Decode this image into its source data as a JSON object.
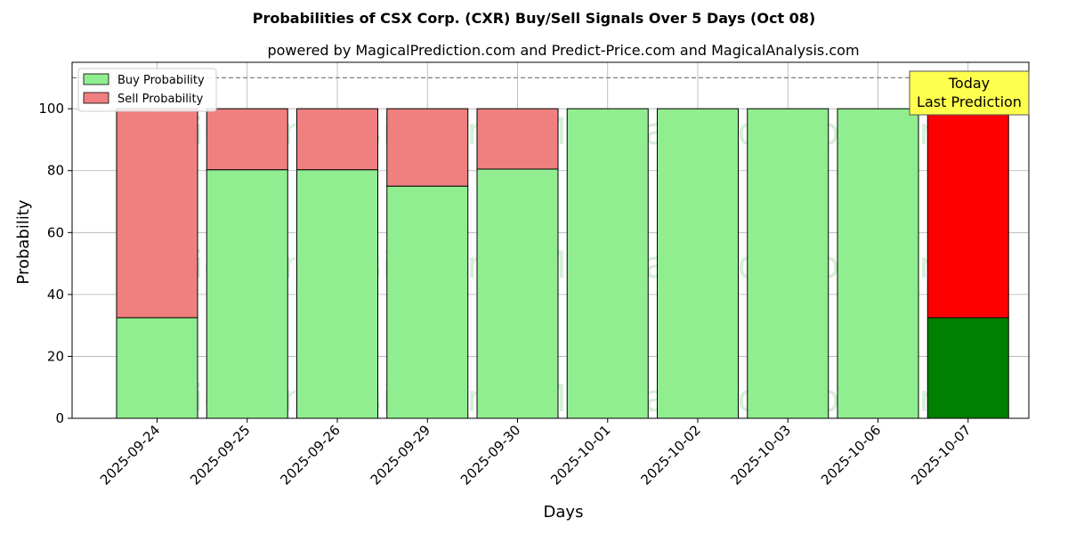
{
  "chart_data": {
    "type": "bar",
    "stacked": true,
    "title": "Probabilities of CSX Corp. (CXR) Buy/Sell Signals Over 5 Days (Oct 08)",
    "subtitle": "powered by MagicalPrediction.com and Predict-Price.com and MagicalAnalysis.com",
    "xlabel": "Days",
    "ylabel": "Probability",
    "ylim": [
      0,
      115
    ],
    "yticks": [
      0,
      20,
      40,
      60,
      80,
      100
    ],
    "grid": true,
    "legend_placement": "top-left",
    "reference_line": 110,
    "categories": [
      "2025-09-24",
      "2025-09-25",
      "2025-09-26",
      "2025-09-29",
      "2025-09-30",
      "2025-10-01",
      "2025-10-02",
      "2025-10-03",
      "2025-10-06",
      "2025-10-07"
    ],
    "series": [
      {
        "name": "Buy Probability",
        "values": [
          32.5,
          80.3,
          80.3,
          75.0,
          80.5,
          100,
          100,
          100,
          100,
          32.5
        ],
        "color": "#90ee90",
        "highlight_color": "#008000"
      },
      {
        "name": "Sell Probability",
        "values": [
          67.5,
          19.7,
          19.7,
          25.0,
          19.5,
          0,
          0,
          0,
          0,
          67.5
        ],
        "color": "#f08080",
        "highlight_color": "#ff0000"
      }
    ],
    "highlight_index": 9,
    "annotation": {
      "lines": [
        "Today",
        "Last Prediction"
      ],
      "background": "#ffff4d"
    },
    "watermarks": [
      "MagicalAnalysis.com",
      "MagicalPrediction.com"
    ]
  }
}
